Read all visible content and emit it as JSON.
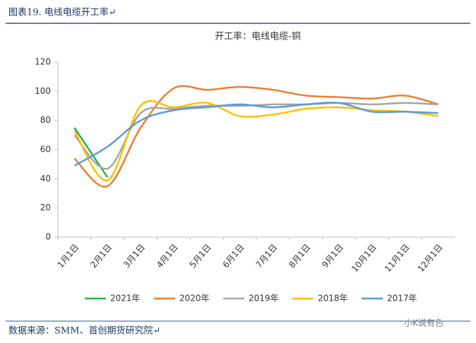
{
  "header": "图表19.  电线电缆开工率↵",
  "footer": "数据来源：SMM、首创期货研究院↵",
  "watermark": "小K说有色",
  "chart_data": {
    "type": "line",
    "title": "开工率：电线电缆-铜",
    "categories": [
      "1月1日",
      "2月1日",
      "3月1日",
      "4月1日",
      "5月1日",
      "6月1日",
      "7月1日",
      "8月1日",
      "9月1日",
      "10月1日",
      "11月1日",
      "12月1日"
    ],
    "series": [
      {
        "name": "2021年",
        "color": "#2db34a",
        "values": [
          75,
          41,
          null,
          null,
          null,
          null,
          null,
          null,
          null,
          null,
          null,
          null
        ]
      },
      {
        "name": "2020年",
        "color": "#ed7d31",
        "values": [
          54,
          35,
          75,
          102,
          101,
          103,
          101,
          97,
          96,
          95,
          97,
          91
        ]
      },
      {
        "name": "2019年",
        "color": "#a5a5a5",
        "values": [
          70,
          47,
          85,
          88,
          90,
          90,
          91,
          91,
          92,
          91,
          92,
          91
        ]
      },
      {
        "name": "2018年",
        "color": "#ffc000",
        "values": [
          73,
          39,
          90,
          89,
          92,
          83,
          84,
          88,
          89,
          87,
          86,
          83
        ]
      },
      {
        "name": "2017年",
        "color": "#5b9bd5",
        "values": [
          49,
          62,
          80,
          87,
          89,
          91,
          89,
          91,
          92,
          86,
          86,
          85
        ]
      }
    ],
    "ylim": [
      0,
      120
    ],
    "yticks": [
      0,
      20,
      40,
      60,
      80,
      100,
      120
    ],
    "grid": false,
    "legend": "bottom"
  }
}
